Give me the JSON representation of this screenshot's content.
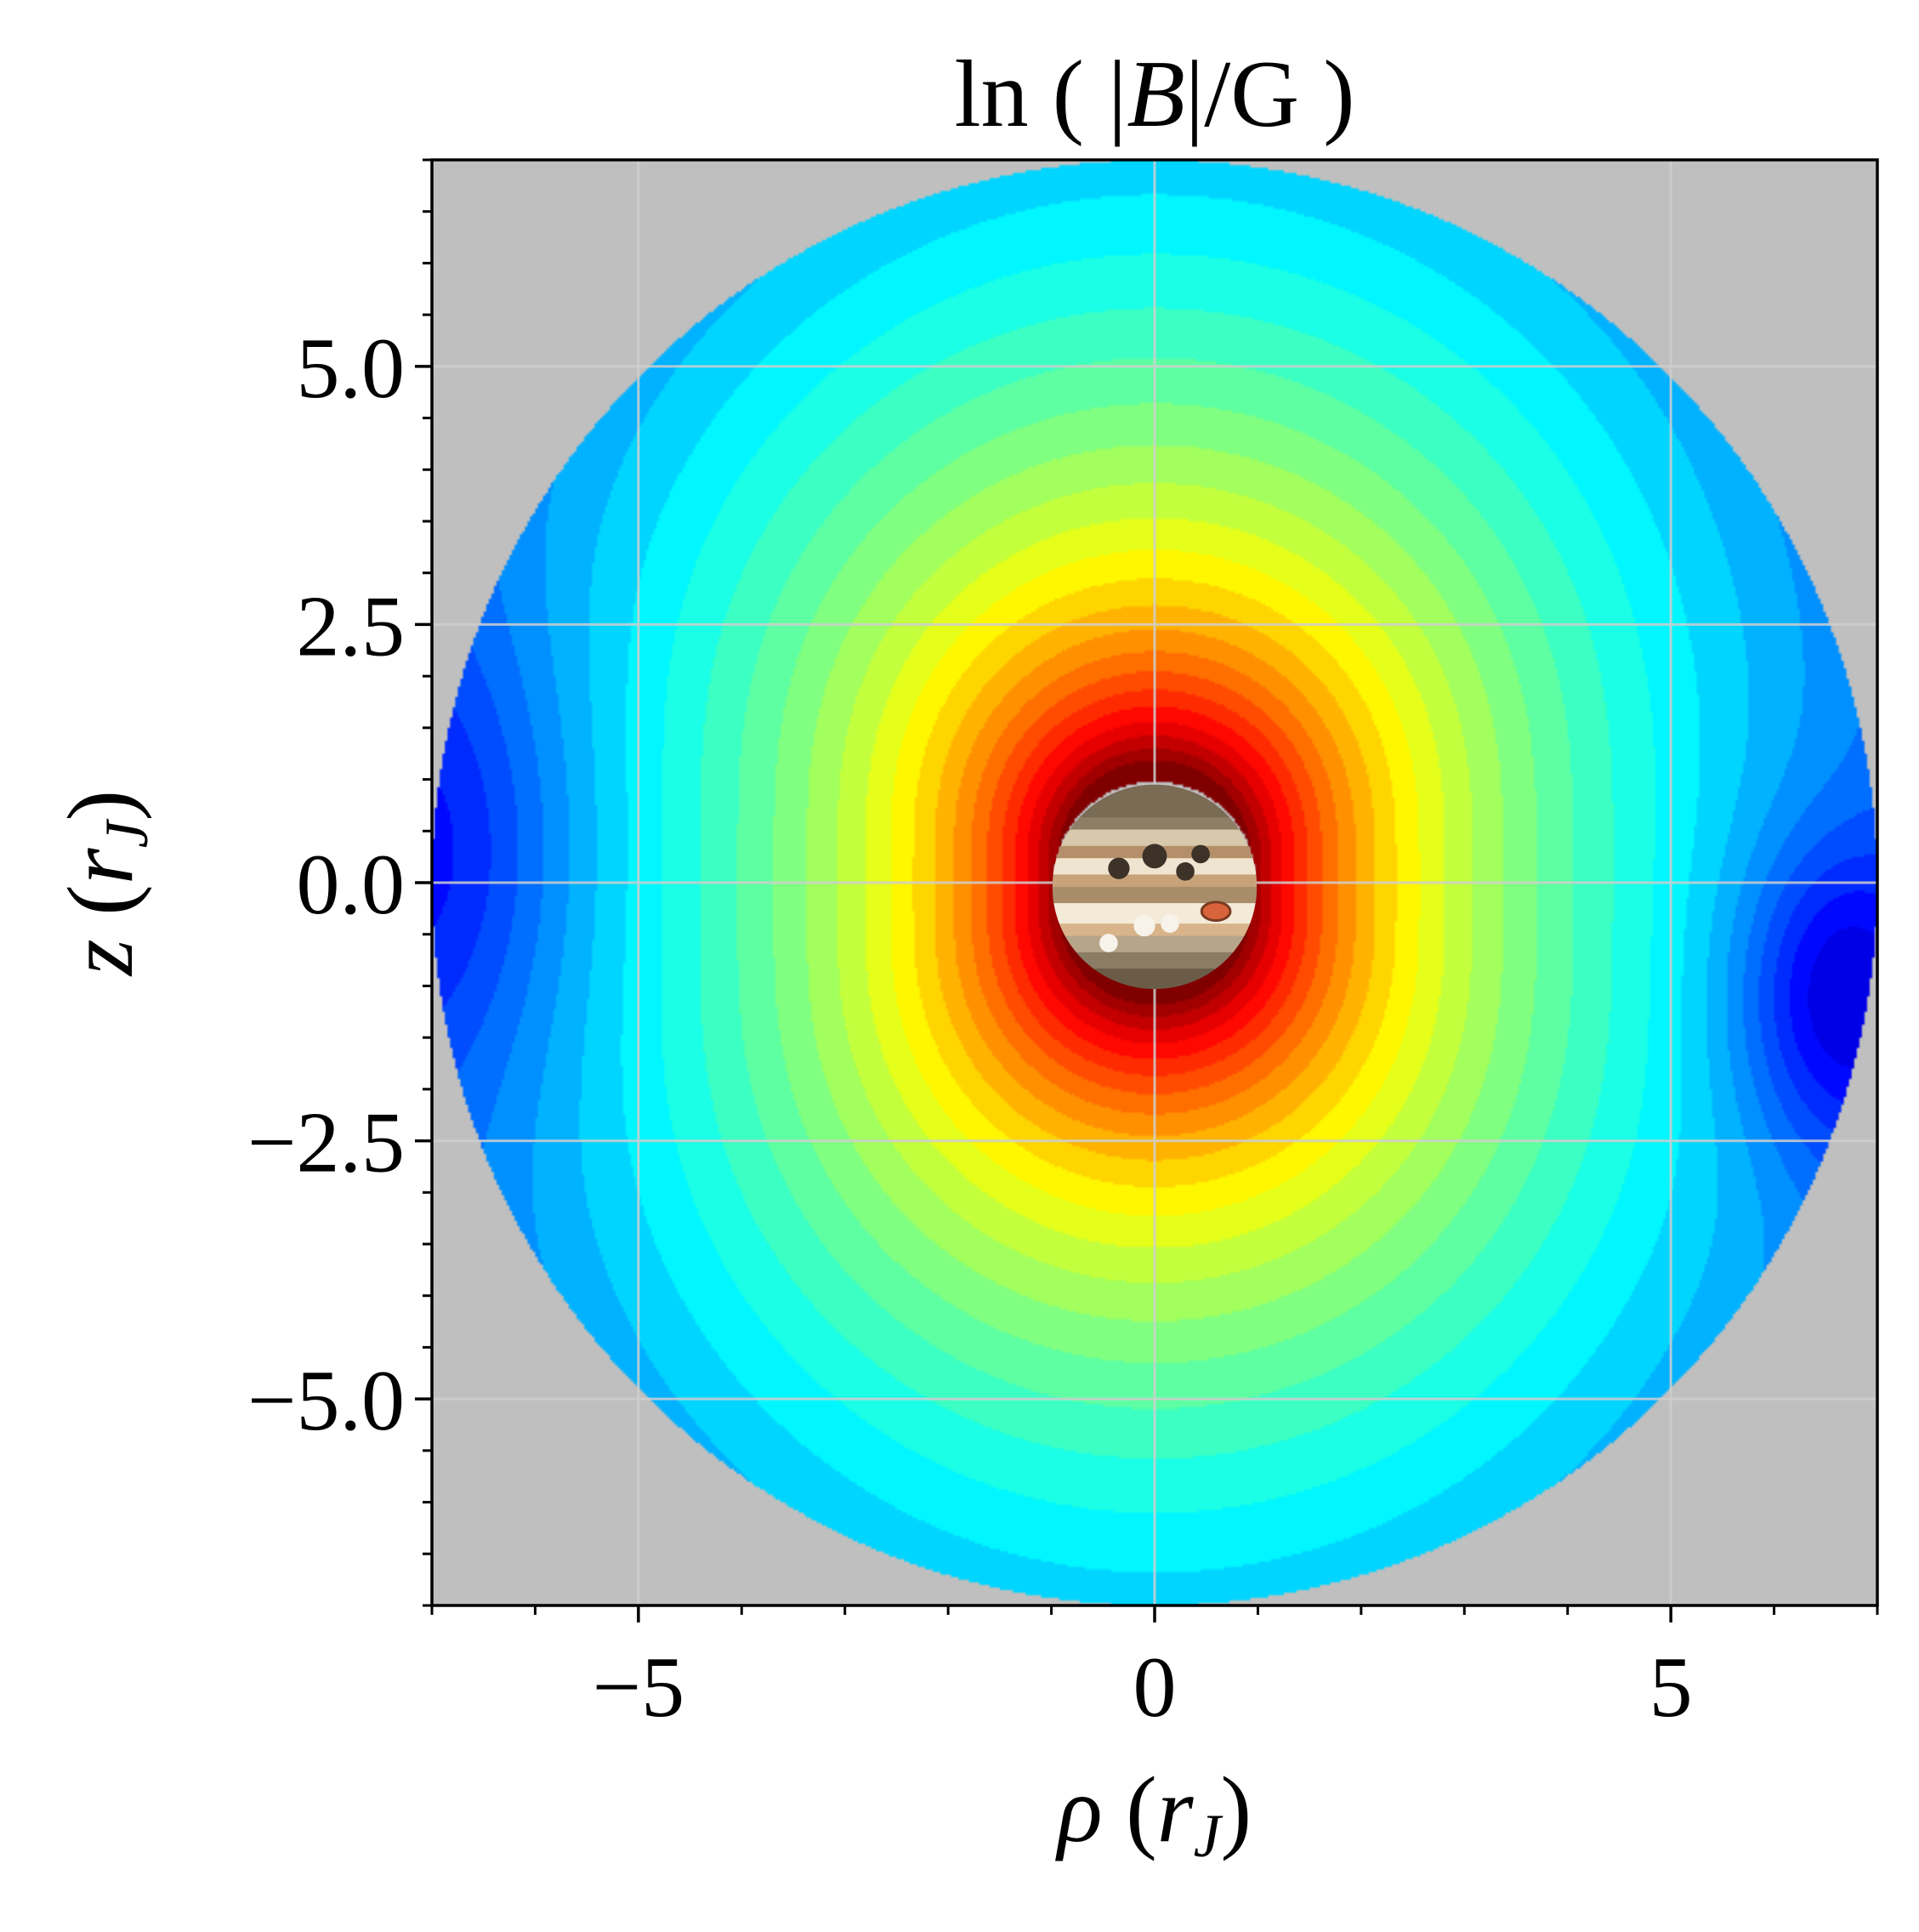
{
  "chart_data": {
    "type": "heatmap",
    "title": "ln ( |B|/G )",
    "title_parts": {
      "prefix": "ln ( |",
      "var": "B",
      "suffix": "|/G )"
    },
    "xlabel": "ρ (r_J)",
    "xlabel_parts": {
      "sym": "ρ",
      "open": " (",
      "var": "r",
      "sub": "J",
      "close": ")"
    },
    "ylabel": "z (r_J)",
    "ylabel_parts": {
      "sym": "z",
      "open": " (",
      "var": "r",
      "sub": "J",
      "close": ")"
    },
    "xlim": [
      -7,
      7
    ],
    "ylim": [
      -7,
      7
    ],
    "xticks": [
      -5,
      0,
      5
    ],
    "xtick_labels": [
      "−5",
      "0",
      "5"
    ],
    "yticks": [
      5.0,
      2.5,
      0.0,
      -2.5,
      -5.0
    ],
    "ytick_labels": [
      "5.0",
      "2.5",
      "0.0",
      "−2.5",
      "−5.0"
    ],
    "minor_tick_step": 1,
    "minor_ytick_step": 0.5,
    "grid": true,
    "domain_radius": 7,
    "planet_radius": 1,
    "background_color": "#bfbfbf",
    "colormap": "jet",
    "n_levels": 28,
    "field_model": "dipole plus weak offset perturbations (approximate reconstruction)",
    "colors": {
      "outside": "#bfbfbf",
      "grid": "#cfcfcf",
      "planet_band_light": "#f1e9d6",
      "planet_band_dark": "#6e5f4a",
      "red_spot": "#d9633b"
    }
  }
}
